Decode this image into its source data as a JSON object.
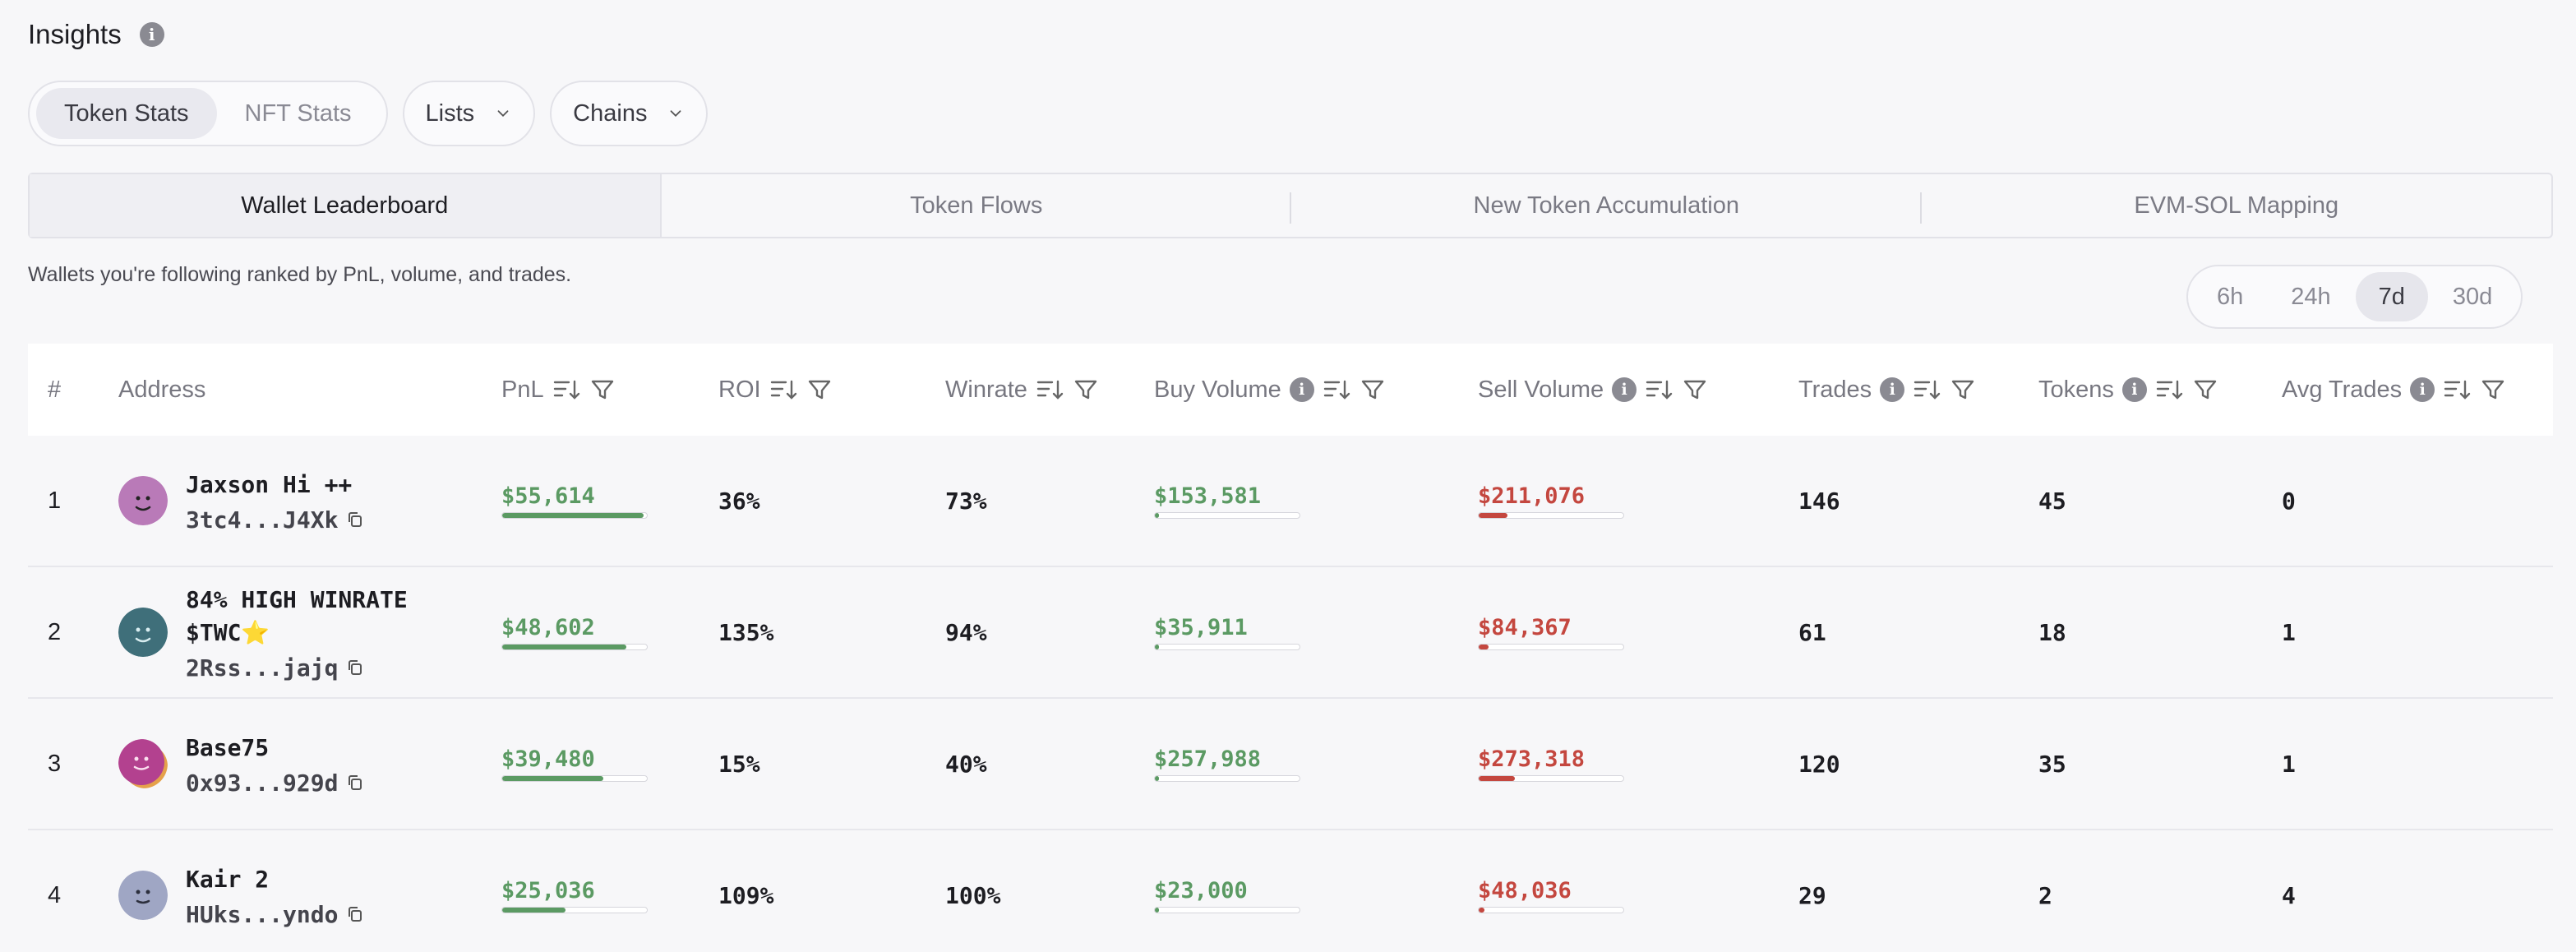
{
  "header": {
    "title": "Insights",
    "info_icon": "info-icon"
  },
  "filters": {
    "segments": [
      {
        "label": "Token Stats",
        "active": true
      },
      {
        "label": "NFT Stats",
        "active": false
      }
    ],
    "lists_label": "Lists",
    "chains_label": "Chains"
  },
  "tabs": [
    {
      "label": "Wallet Leaderboard",
      "active": true
    },
    {
      "label": "Token Flows",
      "active": false
    },
    {
      "label": "New Token Accumulation",
      "active": false
    },
    {
      "label": "EVM-SOL Mapping",
      "active": false
    }
  ],
  "description": "Wallets you're following ranked by PnL, volume, and trades.",
  "time_ranges": [
    {
      "label": "6h",
      "active": false
    },
    {
      "label": "24h",
      "active": false
    },
    {
      "label": "7d",
      "active": true
    },
    {
      "label": "30d",
      "active": false
    }
  ],
  "table": {
    "columns": {
      "rank": "#",
      "address": "Address",
      "pnl": "PnL",
      "roi": "ROI",
      "winrate": "Winrate",
      "buy_volume": "Buy Volume",
      "sell_volume": "Sell Volume",
      "trades": "Trades",
      "tokens": "Tokens",
      "avg_trades": "Avg Trades"
    },
    "rows": [
      {
        "rank": "1",
        "name": "Jaxson Hi ++",
        "address": "3tc4...J4Xk",
        "pnl": "$55,614",
        "pnl_fraction": 0.98,
        "roi": "36%",
        "winrate": "73%",
        "buy_volume": "$153,581",
        "buy_fraction": 0.03,
        "sell_volume": "$211,076",
        "sell_fraction": 0.2,
        "trades": "146",
        "tokens": "45",
        "avg_trades": "0",
        "avatar_color": "#b97ab8"
      },
      {
        "rank": "2",
        "name": "84% HIGH WINRATE $TWC⭐",
        "address": "2Rss...jajq",
        "pnl": "$48,602",
        "pnl_fraction": 0.86,
        "roi": "135%",
        "winrate": "94%",
        "buy_volume": "$35,911",
        "buy_fraction": 0.03,
        "sell_volume": "$84,367",
        "sell_fraction": 0.07,
        "trades": "61",
        "tokens": "18",
        "avg_trades": "1",
        "avatar_color": "#3f6f7a"
      },
      {
        "rank": "3",
        "name": "Base75",
        "address": "0x93...929d",
        "pnl": "$39,480",
        "pnl_fraction": 0.7,
        "roi": "15%",
        "winrate": "40%",
        "buy_volume": "$257,988",
        "buy_fraction": 0.03,
        "sell_volume": "$273,318",
        "sell_fraction": 0.25,
        "trades": "120",
        "tokens": "35",
        "avg_trades": "1",
        "avatar_color": "#b3418f"
      },
      {
        "rank": "4",
        "name": "Kair 2",
        "address": "HUks...yndo",
        "pnl": "$25,036",
        "pnl_fraction": 0.44,
        "roi": "109%",
        "winrate": "100%",
        "buy_volume": "$23,000",
        "buy_fraction": 0.03,
        "sell_volume": "$48,036",
        "sell_fraction": 0.04,
        "trades": "29",
        "tokens": "2",
        "avg_trades": "4",
        "avatar_color": "#9fa6c4"
      }
    ]
  }
}
